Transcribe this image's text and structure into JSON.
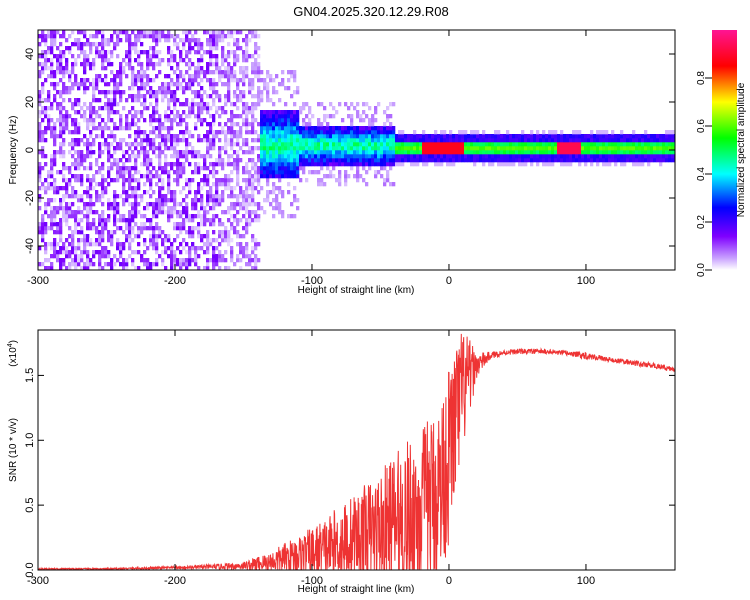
{
  "title": "GN04.2025.320.12.29.R08",
  "chart_data": [
    {
      "type": "heatmap",
      "title": "GN04.2025.320.12.29.R08",
      "xlabel": "Height of straight line (km)",
      "ylabel": "Frequency (Hz)",
      "xlim": [
        -300,
        165
      ],
      "ylim": [
        -50,
        50
      ],
      "xticks": [
        "-300",
        "-200",
        "-100",
        "0",
        "100"
      ],
      "xtick_values": [
        -300,
        -200,
        -100,
        0,
        100
      ],
      "yticks": [
        "-40",
        "-20",
        "0",
        "20",
        "40"
      ],
      "ytick_values": [
        -40,
        -20,
        0,
        20,
        40
      ],
      "colorbar": {
        "label": "Normalized spectral amplitude",
        "range": [
          0,
          1
        ],
        "ticks": [
          "0.0",
          "0.2",
          "0.4",
          "0.6",
          "0.8"
        ],
        "tick_values": [
          0.0,
          0.2,
          0.4,
          0.6,
          0.8
        ],
        "colors": [
          "#ffffff",
          "#7f00ff",
          "#0000ff",
          "#00ffff",
          "#00ff00",
          "#ffff00",
          "#ff0000",
          "#ff1493"
        ]
      },
      "regions": [
        {
          "x": [
            -300,
            -140
          ],
          "freq_spread": 50,
          "amplitude": 0.08,
          "description_key": "noise"
        },
        {
          "x": [
            -140,
            -40
          ],
          "freq_spread": 8,
          "amplitude": 0.35
        },
        {
          "x": [
            -40,
            165
          ],
          "freq_center": 0,
          "freq_spread": 3,
          "amplitude": 0.5
        },
        {
          "x": [
            78,
            95
          ],
          "freq_center": -1,
          "amplitude": 0.95
        },
        {
          "x": [
            -20,
            10
          ],
          "freq_center": -1,
          "amplitude": 0.9
        }
      ]
    },
    {
      "type": "line",
      "xlabel": "Height of straight line (km)",
      "ylabel": "SNR (10 * v/v)",
      "y_multiplier": "(x10",
      "y_multiplier_exp": "4",
      "y_multiplier_close": ")",
      "xlim": [
        -300,
        165
      ],
      "ylim": [
        0,
        1.85
      ],
      "xticks": [
        "-300",
        "-200",
        "-100",
        "0",
        "100"
      ],
      "xtick_values": [
        -300,
        -200,
        -100,
        0,
        100
      ],
      "yticks": [
        "0.0",
        "0.5",
        "1.0",
        "1.5"
      ],
      "ytick_values": [
        0.0,
        0.5,
        1.0,
        1.5
      ],
      "color": "#ee3333",
      "series": [
        {
          "name": "SNR",
          "x": [
            -300,
            -250,
            -200,
            -170,
            -150,
            -140,
            -130,
            -120,
            -110,
            -100,
            -90,
            -80,
            -70,
            -60,
            -50,
            -40,
            -30,
            -20,
            -10,
            -5,
            0,
            5,
            10,
            15,
            20,
            30,
            40,
            50,
            60,
            70,
            80,
            90,
            100,
            110,
            120,
            130,
            140,
            150,
            165
          ],
          "y": [
            0.01,
            0.01,
            0.02,
            0.03,
            0.04,
            0.06,
            0.08,
            0.12,
            0.15,
            0.18,
            0.22,
            0.27,
            0.32,
            0.37,
            0.42,
            0.48,
            0.55,
            0.62,
            0.72,
            0.85,
            1.05,
            1.3,
            1.5,
            1.55,
            1.6,
            1.66,
            1.68,
            1.69,
            1.69,
            1.69,
            1.68,
            1.67,
            1.66,
            1.64,
            1.62,
            1.61,
            1.59,
            1.58,
            1.55
          ],
          "noise_amplitude": [
            0.005,
            0.005,
            0.01,
            0.02,
            0.03,
            0.06,
            0.08,
            0.12,
            0.15,
            0.2,
            0.25,
            0.3,
            0.35,
            0.4,
            0.45,
            0.55,
            0.6,
            0.65,
            0.7,
            0.7,
            0.7,
            0.6,
            0.5,
            0.3,
            0.1,
            0.03,
            0.02,
            0.02,
            0.02,
            0.02,
            0.02,
            0.02,
            0.03,
            0.02,
            0.02,
            0.02,
            0.02,
            0.02,
            0.02
          ]
        }
      ]
    }
  ]
}
